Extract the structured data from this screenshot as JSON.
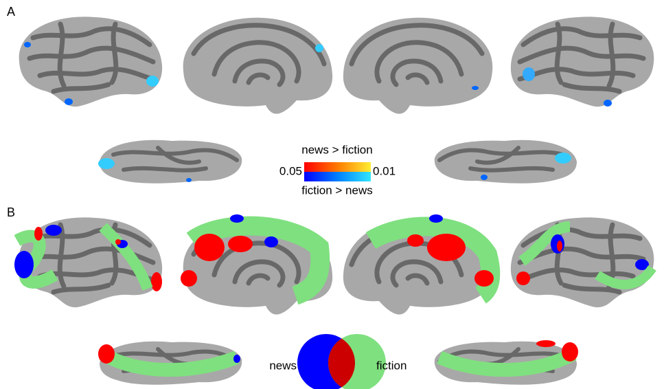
{
  "panel_a": {
    "label": "A",
    "legend": {
      "top": "news > fiction",
      "low": "0.05",
      "high": "0.01",
      "bottom": "fiction > news"
    }
  },
  "panel_b": {
    "label": "B",
    "legend": {
      "left": "news",
      "right": "fiction"
    }
  }
}
